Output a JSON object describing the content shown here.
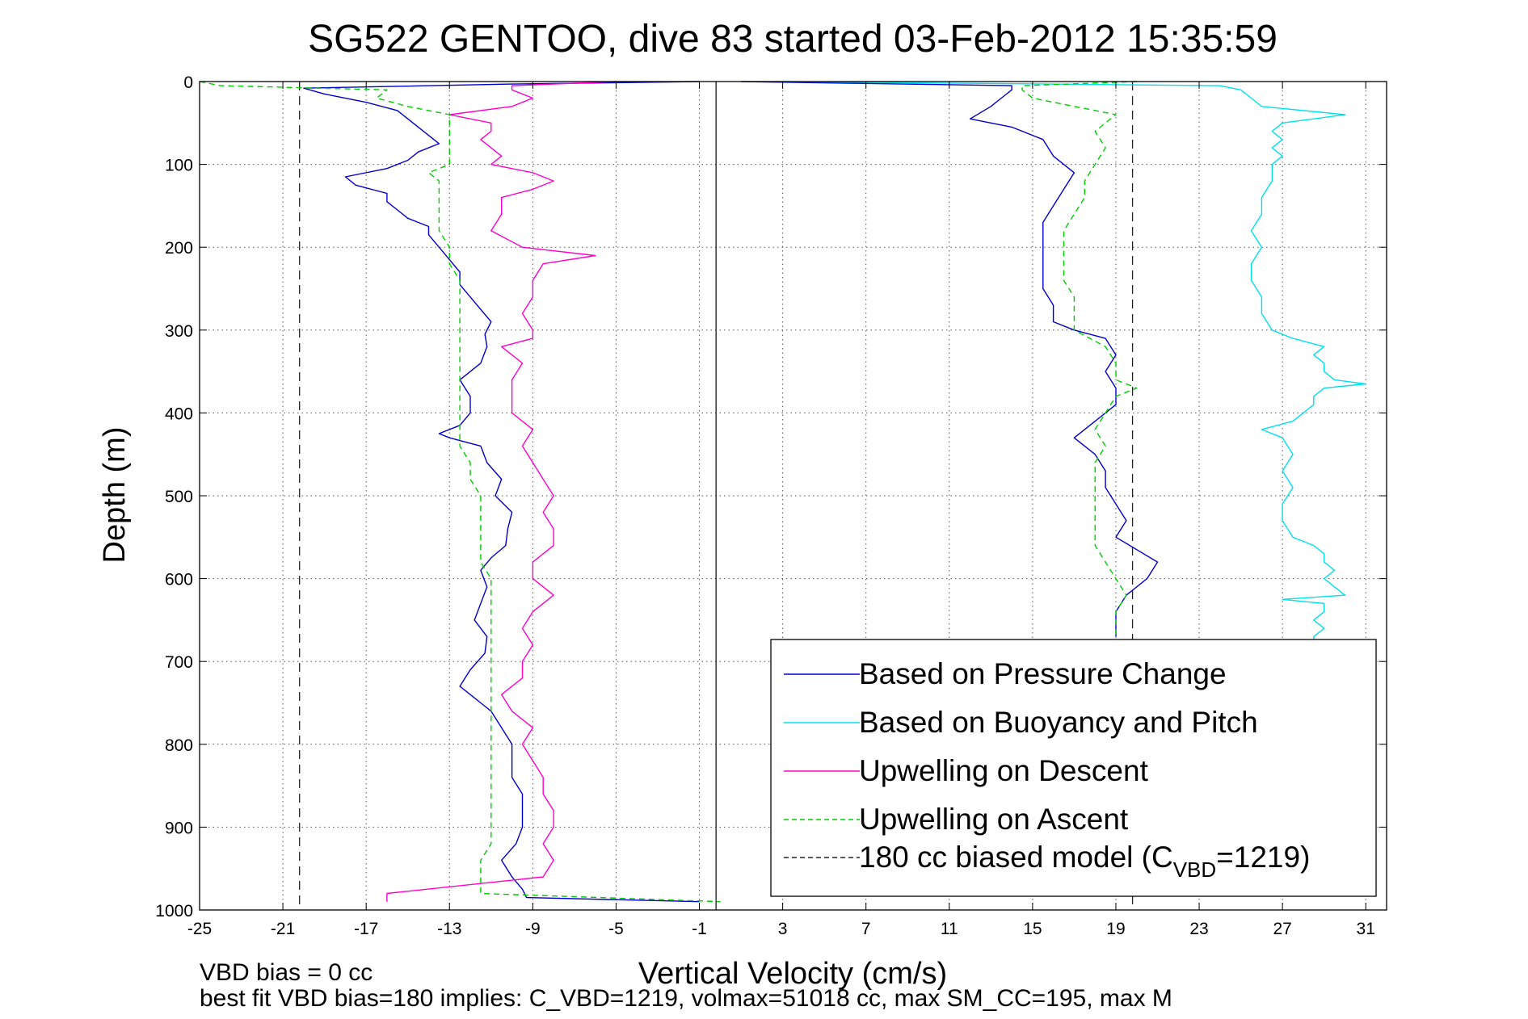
{
  "chart_data": {
    "type": "line",
    "title": "SG522 GENTOO, dive 83 started 03-Feb-2012 15:35:59",
    "xlabel": "Vertical Velocity (cm/s)",
    "ylabel": "Depth (m)",
    "xlim": [
      -25,
      32
    ],
    "ylim": [
      1000,
      0
    ],
    "y_reversed": true,
    "grid": true,
    "xticks": [
      -25,
      -21,
      -17,
      -13,
      -9,
      -5,
      -1,
      3,
      7,
      11,
      15,
      19,
      23,
      27,
      31
    ],
    "xtick_labels": [
      "-25",
      "-21",
      "-17",
      "-13",
      "-9",
      "-5",
      "-1",
      "3",
      "7",
      "11",
      "15",
      "19",
      "23",
      "27",
      "31"
    ],
    "yticks": [
      0,
      100,
      200,
      300,
      400,
      500,
      600,
      700,
      800,
      900,
      1000
    ],
    "ytick_labels": [
      "0",
      "100",
      "200",
      "300",
      "400",
      "500",
      "600",
      "700",
      "800",
      "900",
      "1000"
    ],
    "zero_line_x": -0.2,
    "legend_position": "bottom-right",
    "series": [
      {
        "name": "Based on Pressure Change",
        "color": "#0000cc",
        "dash": "solid",
        "segments": [
          {
            "depth": [
              0,
              3,
              8,
              15,
              25,
              35,
              45,
              55,
              65,
              75,
              85,
              95,
              105,
              115,
              125,
              135,
              145,
              155,
              165,
              175,
              185,
              200,
              215,
              230,
              245,
              260,
              275,
              290,
              305,
              320,
              340,
              360,
              380,
              400,
              415,
              425,
              430,
              440,
              460,
              480,
              500,
              520,
              540,
              560,
              575,
              590,
              610,
              630,
              650,
              670,
              690,
              710,
              730,
              740,
              750,
              760,
              780,
              800,
              820,
              840,
              860,
              880,
              900,
              920,
              940,
              960,
              975,
              985,
              990
            ],
            "v": [
              -1,
              -10,
              -20,
              -19,
              -17,
              -15.5,
              -15,
              -14.5,
              -14,
              -13.5,
              -14.5,
              -15,
              -16,
              -18,
              -17.5,
              -16,
              -16,
              -15.5,
              -15,
              -14,
              -14,
              -13.5,
              -13,
              -12.5,
              -12.5,
              -12,
              -11.5,
              -11,
              -11.3,
              -11.2,
              -11.5,
              -12.5,
              -12,
              -12,
              -12.5,
              -13.5,
              -13,
              -11.5,
              -11.2,
              -10.5,
              -10.8,
              -10,
              -10.2,
              -10.3,
              -11,
              -11.5,
              -11.2,
              -11.5,
              -11.8,
              -11.2,
              -11.3,
              -12,
              -12.5,
              -12,
              -11.5,
              -11,
              -10.5,
              -10,
              -10,
              -10,
              -9.5,
              -9.5,
              -9.5,
              -9.8,
              -10.5,
              -10,
              -9.5,
              -9.3,
              -1
            ]
          },
          {
            "depth": [
              0,
              5,
              10,
              20,
              30,
              45,
              55,
              70,
              90,
              110,
              130,
              150,
              170,
              190,
              210,
              230,
              250,
              270,
              290,
              300,
              310,
              330,
              350,
              370,
              390,
              410,
              430,
              450,
              470,
              490,
              510,
              530,
              550,
              565,
              580,
              600,
              620,
              640,
              660,
              670
            ],
            "v": [
              1,
              14,
              14,
              13.5,
              13,
              12,
              14,
              15.5,
              16,
              17,
              16.5,
              16,
              15.5,
              15.5,
              15.5,
              15.5,
              15.5,
              16,
              16,
              17,
              18.5,
              19,
              18.5,
              19,
              19,
              18,
              17,
              18,
              18.5,
              18.5,
              19,
              19.5,
              19,
              20,
              21,
              20.5,
              19.5,
              19,
              19,
              19
            ]
          }
        ]
      },
      {
        "name": "Based on Buoyancy and Pitch",
        "color": "#00e0f0",
        "dash": "solid",
        "segments": [
          {
            "depth": [
              0,
              5,
              10,
              20,
              30,
              40,
              50,
              60,
              70,
              80,
              90,
              100,
              120,
              140,
              160,
              180,
              200,
              220,
              240,
              260,
              280,
              300,
              310,
              320,
              330,
              340,
              350,
              360,
              365,
              370,
              380,
              390,
              400,
              410,
              420,
              430,
              450,
              470,
              490,
              510,
              530,
              550,
              560,
              570,
              580,
              590,
              600,
              610,
              620,
              625,
              630,
              640,
              650,
              660,
              670,
              680
            ],
            "v": [
              3,
              24,
              25,
              25.5,
              26,
              30,
              27,
              26.5,
              27,
              26.5,
              27,
              26.5,
              26.5,
              26,
              26,
              25.5,
              26,
              25.5,
              25.5,
              26,
              26,
              26.5,
              27.5,
              29,
              28.5,
              29,
              29,
              29.5,
              31,
              29,
              28.5,
              28.5,
              28,
              27.5,
              26,
              27,
              27.5,
              27,
              27.5,
              27,
              27,
              27.5,
              28.5,
              29,
              29,
              29.5,
              29,
              29.5,
              30,
              27,
              29,
              29,
              28.5,
              29,
              28.5,
              28.5
            ]
          }
        ]
      },
      {
        "name": "Upwelling on Descent",
        "color": "#ff00cc",
        "dash": "solid",
        "segments": [
          {
            "depth": [
              0,
              5,
              10,
              20,
              30,
              40,
              50,
              60,
              70,
              80,
              90,
              100,
              110,
              120,
              130,
              140,
              160,
              180,
              200,
              210,
              220,
              240,
              260,
              280,
              300,
              310,
              320,
              340,
              360,
              380,
              400,
              420,
              440,
              460,
              480,
              500,
              520,
              540,
              560,
              580,
              600,
              620,
              640,
              660,
              680,
              700,
              720,
              740,
              760,
              780,
              800,
              820,
              840,
              860,
              880,
              900,
              920,
              940,
              960,
              980,
              990
            ],
            "v": [
              -5,
              -10,
              -10,
              -9,
              -10,
              -13,
              -11,
              -11,
              -11.5,
              -11,
              -10.5,
              -11,
              -9,
              -8,
              -9,
              -10.5,
              -10.5,
              -11,
              -9.5,
              -6,
              -8.5,
              -9,
              -9,
              -9.5,
              -9,
              -9,
              -10.5,
              -9.5,
              -10,
              -10,
              -10,
              -9,
              -9.5,
              -9,
              -8.5,
              -8,
              -8.5,
              -8,
              -8,
              -9,
              -9,
              -8,
              -9,
              -9.5,
              -9,
              -9.5,
              -9.5,
              -10.5,
              -10,
              -9,
              -9.5,
              -9,
              -8.5,
              -8.5,
              -8,
              -8,
              -8.5,
              -8,
              -8.5,
              -16,
              -16
            ]
          }
        ]
      },
      {
        "name": "Upwelling on Ascent",
        "color": "#00cc00",
        "dash": "dashed",
        "segments": [
          {
            "depth": [
              0,
              5,
              10,
              20,
              30,
              40,
              50,
              60,
              70,
              80,
              90,
              100,
              110,
              120,
              140,
              160,
              180,
              200,
              220,
              240,
              260,
              280,
              300,
              320,
              340,
              360,
              380,
              400,
              420,
              440,
              460,
              480,
              500,
              520,
              540,
              560,
              580,
              600,
              620,
              640,
              660,
              680,
              700,
              720,
              740,
              760,
              780,
              800,
              820,
              840,
              860,
              880,
              900,
              920,
              940,
              960,
              980,
              990
            ],
            "v": [
              -25,
              -24,
              -16,
              -16.5,
              -15,
              -13,
              -13,
              -13,
              -13,
              -13,
              -13,
              -13,
              -14,
              -13.5,
              -13.5,
              -13.5,
              -13.5,
              -13,
              -13,
              -12.5,
              -12.5,
              -12.5,
              -12.5,
              -12.5,
              -12.5,
              -12.5,
              -12.5,
              -12.5,
              -12.5,
              -12.5,
              -12,
              -12,
              -11.5,
              -11.5,
              -11.5,
              -11.5,
              -11.5,
              -11,
              -11,
              -11,
              -11,
              -11,
              -11,
              -11,
              -11,
              -11,
              -11,
              -11,
              -11,
              -11,
              -11,
              -11,
              -11,
              -11,
              -11.5,
              -11.5,
              -11.5,
              0
            ]
          },
          {
            "depth": [
              0,
              5,
              10,
              20,
              30,
              40,
              60,
              80,
              100,
              120,
              140,
              160,
              180,
              200,
              220,
              240,
              260,
              280,
              300,
              320,
              340,
              360,
              370,
              380,
              400,
              420,
              440,
              460,
              480,
              500,
              520,
              540,
              560,
              580,
              600,
              620,
              640,
              660,
              670
            ],
            "v": [
              20,
              14.5,
              14.5,
              15,
              17,
              19,
              18,
              18.5,
              18,
              17.5,
              17.5,
              17,
              16.5,
              16.5,
              16.5,
              16.5,
              17,
              17,
              17,
              18.5,
              19,
              19,
              20,
              19,
              18.5,
              18,
              18.5,
              18,
              18,
              18,
              18,
              18,
              18,
              18.5,
              19,
              19.5,
              19,
              19,
              19
            ]
          }
        ]
      },
      {
        "name": "180 cc biased model",
        "legend_label_parts": [
          "180 cc biased model (C",
          "VBD",
          "=1219)"
        ],
        "color": "#222222",
        "dash": "dashed",
        "vertical_lines": [
          -20.2,
          19.8
        ]
      }
    ]
  },
  "footer": {
    "line1": "VBD bias = 0 cc",
    "line2": "best fit VBD bias=180 implies: C_VBD=1219, volmax=51018 cc, max SM_CC=195, max M"
  }
}
